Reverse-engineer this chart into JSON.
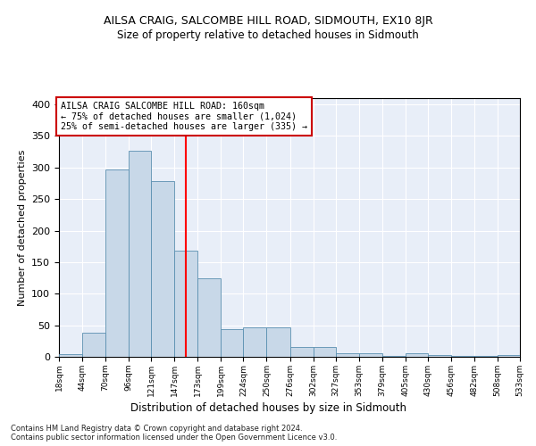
{
  "title": "AILSA CRAIG, SALCOMBE HILL ROAD, SIDMOUTH, EX10 8JR",
  "subtitle": "Size of property relative to detached houses in Sidmouth",
  "xlabel": "Distribution of detached houses by size in Sidmouth",
  "ylabel": "Number of detached properties",
  "bar_values": [
    4,
    38,
    297,
    327,
    278,
    168,
    125,
    44,
    46,
    46,
    15,
    15,
    5,
    6,
    1,
    6,
    3,
    1,
    1,
    3
  ],
  "bin_labels": [
    "18sqm",
    "44sqm",
    "70sqm",
    "96sqm",
    "121sqm",
    "147sqm",
    "173sqm",
    "199sqm",
    "224sqm",
    "250sqm",
    "276sqm",
    "302sqm",
    "327sqm",
    "353sqm",
    "379sqm",
    "405sqm",
    "430sqm",
    "456sqm",
    "482sqm",
    "508sqm",
    "533sqm"
  ],
  "bar_color": "#c8d8e8",
  "bar_edge_color": "#5a8fb0",
  "bg_color": "#e8eef8",
  "grid_color": "#ffffff",
  "red_line_x": 160,
  "bin_edges": [
    18,
    44,
    70,
    96,
    121,
    147,
    173,
    199,
    224,
    250,
    276,
    302,
    327,
    353,
    379,
    405,
    430,
    456,
    482,
    508,
    533
  ],
  "annotation_text": "AILSA CRAIG SALCOMBE HILL ROAD: 160sqm\n← 75% of detached houses are smaller (1,024)\n25% of semi-detached houses are larger (335) →",
  "annotation_box_color": "#ffffff",
  "annotation_box_edge": "#cc0000",
  "ylim": [
    0,
    410
  ],
  "yticks": [
    0,
    50,
    100,
    150,
    200,
    250,
    300,
    350,
    400
  ],
  "footnote": "Contains HM Land Registry data © Crown copyright and database right 2024.\nContains public sector information licensed under the Open Government Licence v3.0."
}
